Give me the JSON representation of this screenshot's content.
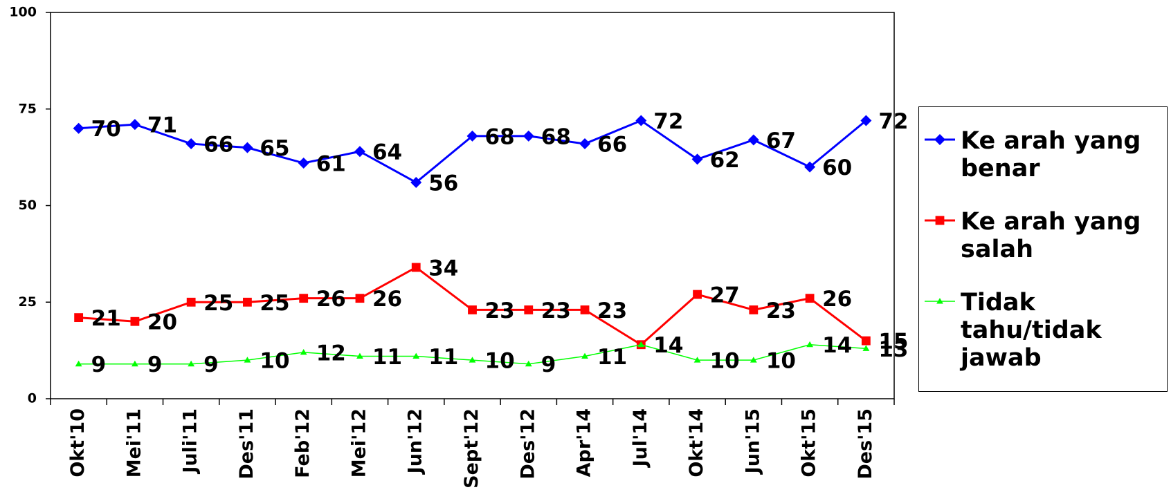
{
  "chart_data": {
    "type": "line",
    "categories": [
      "Okt'10",
      "Mei'11",
      "Juli'11",
      "Des'11",
      "Feb'12",
      "Mei'12",
      "Jun'12",
      "Sept'12",
      "Des'12",
      "Apr'14",
      "Jul'14",
      "Okt'14",
      "Jun'15",
      "Okt'15",
      "Des'15"
    ],
    "series": [
      {
        "name": "Ke arah yang benar",
        "color": "#0000ff",
        "marker": "diamond",
        "values": [
          70,
          71,
          66,
          65,
          61,
          64,
          56,
          68,
          68,
          66,
          72,
          62,
          67,
          60,
          72
        ]
      },
      {
        "name": "Ke arah yang salah",
        "color": "#ff0000",
        "marker": "square",
        "values": [
          21,
          20,
          25,
          25,
          26,
          26,
          34,
          23,
          23,
          23,
          14,
          27,
          23,
          26,
          15
        ]
      },
      {
        "name": "Tidak tahu/tidak jawab",
        "color": "#00ff00",
        "marker": "triangle",
        "values": [
          9,
          9,
          9,
          10,
          12,
          11,
          11,
          10,
          9,
          11,
          14,
          10,
          10,
          14,
          13
        ]
      }
    ],
    "ylim": [
      0,
      100
    ],
    "yticks": [
      0,
      25,
      50,
      75,
      100
    ],
    "legend": "right"
  }
}
